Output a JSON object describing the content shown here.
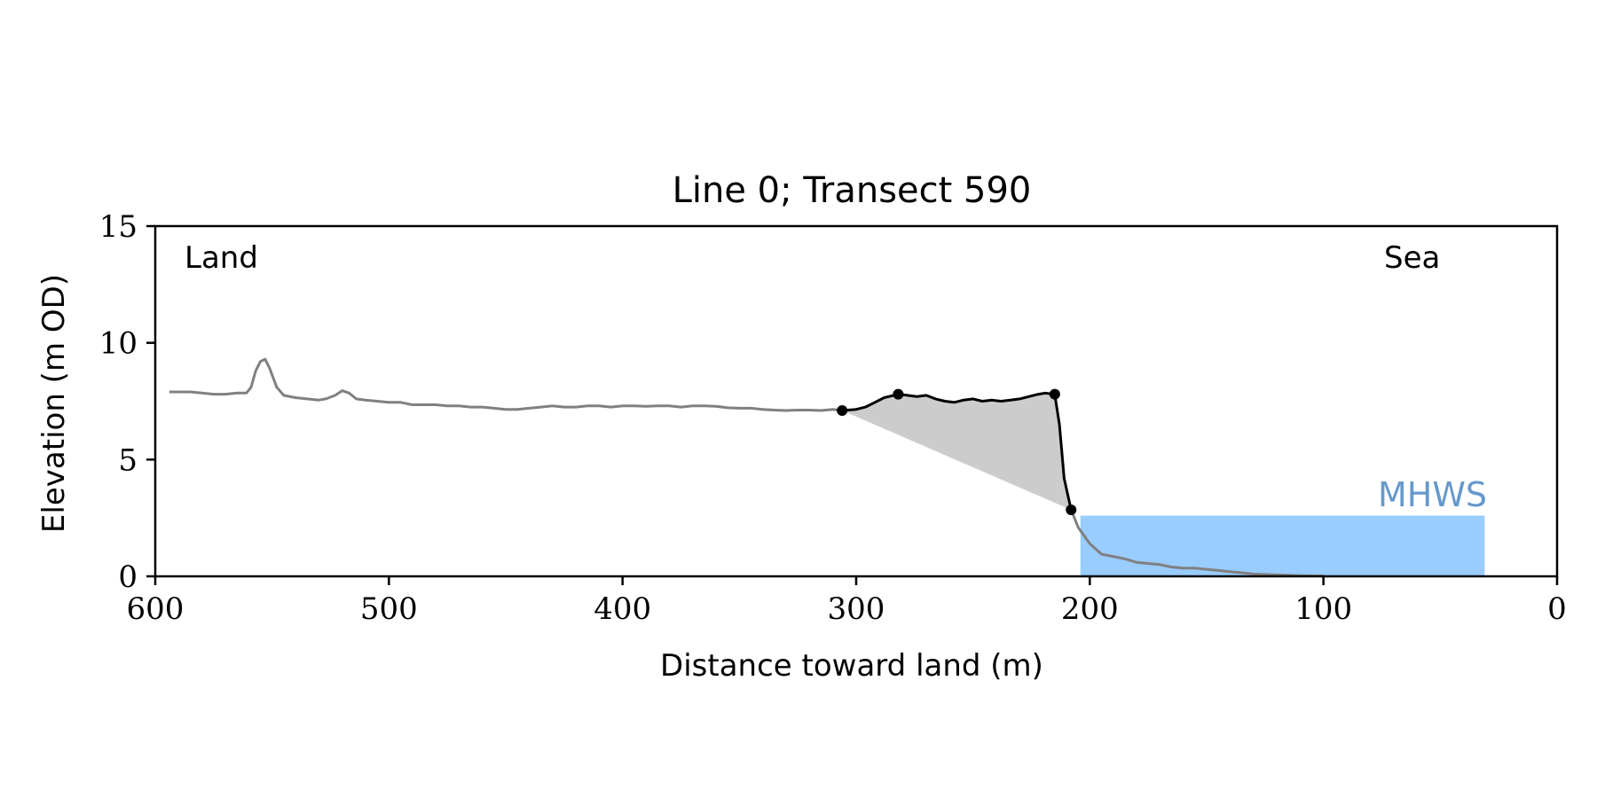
{
  "chart_data": {
    "type": "line",
    "title": "Line 0; Transect 590",
    "xlabel": "Distance toward land (m)",
    "ylabel": "Elevation (m OD)",
    "xlim": [
      600,
      0
    ],
    "ylim": [
      0,
      15
    ],
    "x_ticks": [
      600,
      500,
      400,
      300,
      200,
      100,
      0
    ],
    "y_ticks": [
      0,
      5,
      10,
      15
    ],
    "x_tick_labels": [
      "600",
      "500",
      "400",
      "300",
      "200",
      "100",
      "0"
    ],
    "y_tick_labels": [
      "0",
      "5",
      "10",
      "15"
    ],
    "grid": false,
    "annotations": {
      "land": "Land",
      "sea": "Sea",
      "mhws": "MHWS"
    },
    "colors": {
      "profile": "#808080",
      "cliff": "#000000",
      "fill": "#cccccc",
      "mhws_fill": "#99ccff",
      "mhws_text": "#6699cc"
    },
    "mhws": {
      "x_start": 204,
      "x_end": 31,
      "level": 2.6
    },
    "series": [
      {
        "role": "profile",
        "x": [
          594,
          590,
          585,
          580,
          575,
          570,
          565,
          561,
          559,
          557,
          555,
          553,
          551,
          548,
          545,
          540,
          535,
          530,
          527,
          523,
          520,
          517,
          514,
          510,
          505,
          500,
          495,
          490,
          485,
          480,
          475,
          470,
          465,
          460,
          455,
          450,
          445,
          440,
          435,
          430,
          425,
          420,
          415,
          410,
          405,
          400,
          395,
          390,
          385,
          380,
          375,
          370,
          365,
          360,
          355,
          350,
          345,
          340,
          335,
          330,
          325,
          320,
          315,
          310,
          306
        ],
        "y": [
          7.9,
          7.9,
          7.9,
          7.85,
          7.8,
          7.8,
          7.85,
          7.85,
          8.1,
          8.8,
          9.2,
          9.3,
          8.9,
          8.1,
          7.75,
          7.65,
          7.6,
          7.55,
          7.6,
          7.75,
          7.95,
          7.85,
          7.6,
          7.55,
          7.5,
          7.45,
          7.45,
          7.35,
          7.35,
          7.35,
          7.3,
          7.3,
          7.25,
          7.25,
          7.2,
          7.15,
          7.15,
          7.2,
          7.25,
          7.3,
          7.25,
          7.25,
          7.3,
          7.3,
          7.25,
          7.3,
          7.3,
          7.28,
          7.3,
          7.3,
          7.25,
          7.3,
          7.3,
          7.28,
          7.22,
          7.2,
          7.2,
          7.15,
          7.12,
          7.1,
          7.12,
          7.12,
          7.1,
          7.15,
          7.1
        ]
      },
      {
        "role": "cliff",
        "x": [
          306,
          300,
          296,
          292,
          288,
          284,
          282,
          278,
          274,
          270,
          266,
          262,
          258,
          254,
          250,
          246,
          242,
          238,
          234,
          230,
          226,
          222,
          219,
          217,
          215,
          213,
          211,
          209,
          208
        ],
        "y": [
          7.1,
          7.15,
          7.25,
          7.45,
          7.65,
          7.75,
          7.8,
          7.75,
          7.7,
          7.75,
          7.6,
          7.5,
          7.45,
          7.55,
          7.6,
          7.5,
          7.55,
          7.5,
          7.55,
          7.6,
          7.7,
          7.8,
          7.85,
          7.82,
          7.8,
          6.5,
          4.2,
          3.3,
          2.85
        ]
      },
      {
        "role": "beach",
        "x": [
          208,
          205,
          200,
          195,
          190,
          185,
          180,
          175,
          170,
          165,
          160,
          155,
          150,
          145,
          140,
          135,
          130,
          125,
          120,
          115,
          110,
          105,
          100
        ],
        "y": [
          2.85,
          2.1,
          1.4,
          0.95,
          0.85,
          0.75,
          0.6,
          0.55,
          0.5,
          0.4,
          0.35,
          0.35,
          0.3,
          0.25,
          0.2,
          0.15,
          0.1,
          0.08,
          0.06,
          0.05,
          0.03,
          0.02,
          0.02
        ]
      }
    ],
    "shaded_region": {
      "upper_x": [
        306,
        300,
        296,
        292,
        288,
        284,
        282,
        278,
        274,
        270,
        266,
        262,
        258,
        254,
        250,
        246,
        242,
        238,
        234,
        230,
        226,
        222,
        219,
        217,
        215,
        213,
        211,
        209,
        208
      ],
      "upper_y": [
        7.1,
        7.15,
        7.25,
        7.45,
        7.65,
        7.75,
        7.8,
        7.75,
        7.7,
        7.75,
        7.6,
        7.5,
        7.45,
        7.55,
        7.6,
        7.5,
        7.55,
        7.5,
        7.55,
        7.6,
        7.7,
        7.8,
        7.85,
        7.82,
        7.8,
        6.5,
        4.2,
        3.3,
        2.85
      ],
      "lower_x": [
        306,
        208
      ],
      "lower_y": [
        7.1,
        2.85
      ]
    },
    "markers": [
      {
        "x": 306,
        "y": 7.1
      },
      {
        "x": 282,
        "y": 7.8
      },
      {
        "x": 215,
        "y": 7.8
      },
      {
        "x": 208,
        "y": 2.85
      }
    ]
  }
}
